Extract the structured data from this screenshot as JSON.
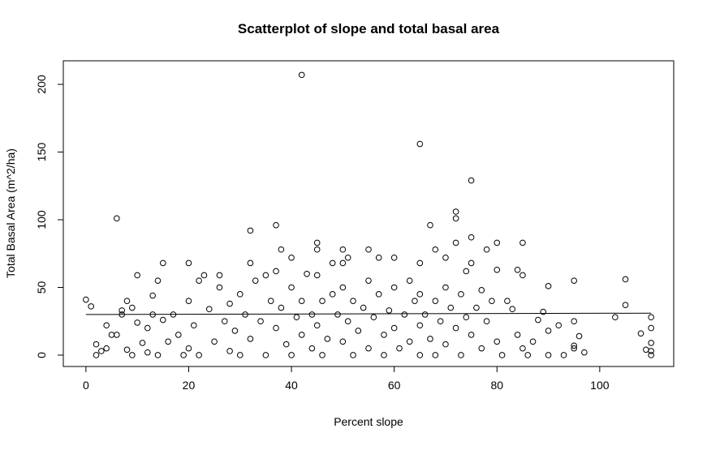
{
  "chart_data": {
    "type": "scatter",
    "title": "Scatterplot of slope and total basal area",
    "x_label": "Percent slope",
    "y_label": "Total Basal Area (m^2/ha)",
    "xlim": [
      -4.4,
      114.4
    ],
    "ylim": [
      -8.4,
      217.4
    ],
    "xticks": [
      0,
      20,
      40,
      60,
      80,
      100
    ],
    "yticks": [
      0,
      50,
      100,
      150,
      200
    ],
    "color": "#000000",
    "x": [
      0,
      1,
      2,
      2,
      3,
      4,
      4,
      5,
      6,
      6,
      7,
      7,
      8,
      8,
      9,
      9,
      10,
      10,
      11,
      12,
      12,
      13,
      13,
      14,
      14,
      15,
      15,
      16,
      17,
      18,
      19,
      20,
      20,
      20,
      21,
      22,
      22,
      23,
      24,
      25,
      26,
      26,
      27,
      28,
      28,
      29,
      30,
      30,
      31,
      32,
      32,
      32,
      33,
      34,
      35,
      35,
      36,
      37,
      37,
      37,
      38,
      38,
      39,
      40,
      40,
      40,
      41,
      42,
      42,
      42,
      43,
      44,
      44,
      45,
      45,
      45,
      45,
      46,
      46,
      47,
      48,
      48,
      49,
      50,
      50,
      50,
      50,
      51,
      51,
      52,
      52,
      53,
      54,
      55,
      55,
      55,
      56,
      57,
      57,
      58,
      58,
      59,
      60,
      60,
      60,
      61,
      62,
      63,
      63,
      64,
      65,
      65,
      65,
      65,
      65,
      66,
      67,
      67,
      68,
      68,
      68,
      69,
      70,
      70,
      70,
      71,
      72,
      72,
      72,
      72,
      73,
      73,
      74,
      74,
      75,
      75,
      75,
      75,
      76,
      77,
      77,
      78,
      78,
      79,
      80,
      80,
      80,
      81,
      82,
      83,
      84,
      84,
      85,
      85,
      85,
      86,
      87,
      88,
      89,
      90,
      90,
      90,
      92,
      93,
      95,
      95,
      95,
      95,
      96,
      97,
      103,
      105,
      105,
      108,
      109,
      110,
      110,
      110,
      110,
      110
    ],
    "values": [
      41,
      36,
      8,
      0,
      3,
      5,
      22,
      15,
      15,
      101,
      30,
      33,
      40,
      4,
      0,
      35,
      24,
      59,
      9,
      20,
      2,
      44,
      30,
      0,
      55,
      68,
      26,
      10,
      30,
      15,
      0,
      68,
      40,
      5,
      22,
      55,
      0,
      59,
      34,
      10,
      59,
      50,
      25,
      38,
      3,
      18,
      45,
      0,
      30,
      92,
      68,
      12,
      55,
      25,
      59,
      0,
      40,
      96,
      62,
      20,
      78,
      35,
      8,
      72,
      50,
      0,
      28,
      207,
      40,
      15,
      60,
      30,
      5,
      83,
      78,
      59,
      22,
      40,
      0,
      12,
      45,
      68,
      30,
      78,
      68,
      50,
      10,
      72,
      25,
      40,
      0,
      18,
      35,
      78,
      55,
      5,
      28,
      72,
      45,
      15,
      0,
      33,
      72,
      50,
      20,
      5,
      30,
      55,
      10,
      40,
      156,
      68,
      45,
      22,
      0,
      30,
      96,
      12,
      78,
      40,
      0,
      25,
      72,
      50,
      8,
      35,
      106,
      101,
      83,
      20,
      45,
      0,
      62,
      28,
      129,
      87,
      68,
      15,
      35,
      48,
      5,
      78,
      25,
      40,
      83,
      63,
      10,
      0,
      40,
      34,
      15,
      63,
      83,
      59,
      5,
      0,
      10,
      26,
      32,
      51,
      18,
      0,
      22,
      0,
      55,
      25,
      7,
      5,
      14,
      2,
      28,
      56,
      37,
      16,
      4,
      28,
      20,
      9,
      3,
      0
    ],
    "fit_line": {
      "x": [
        0,
        110
      ],
      "y": [
        30,
        31
      ]
    }
  }
}
